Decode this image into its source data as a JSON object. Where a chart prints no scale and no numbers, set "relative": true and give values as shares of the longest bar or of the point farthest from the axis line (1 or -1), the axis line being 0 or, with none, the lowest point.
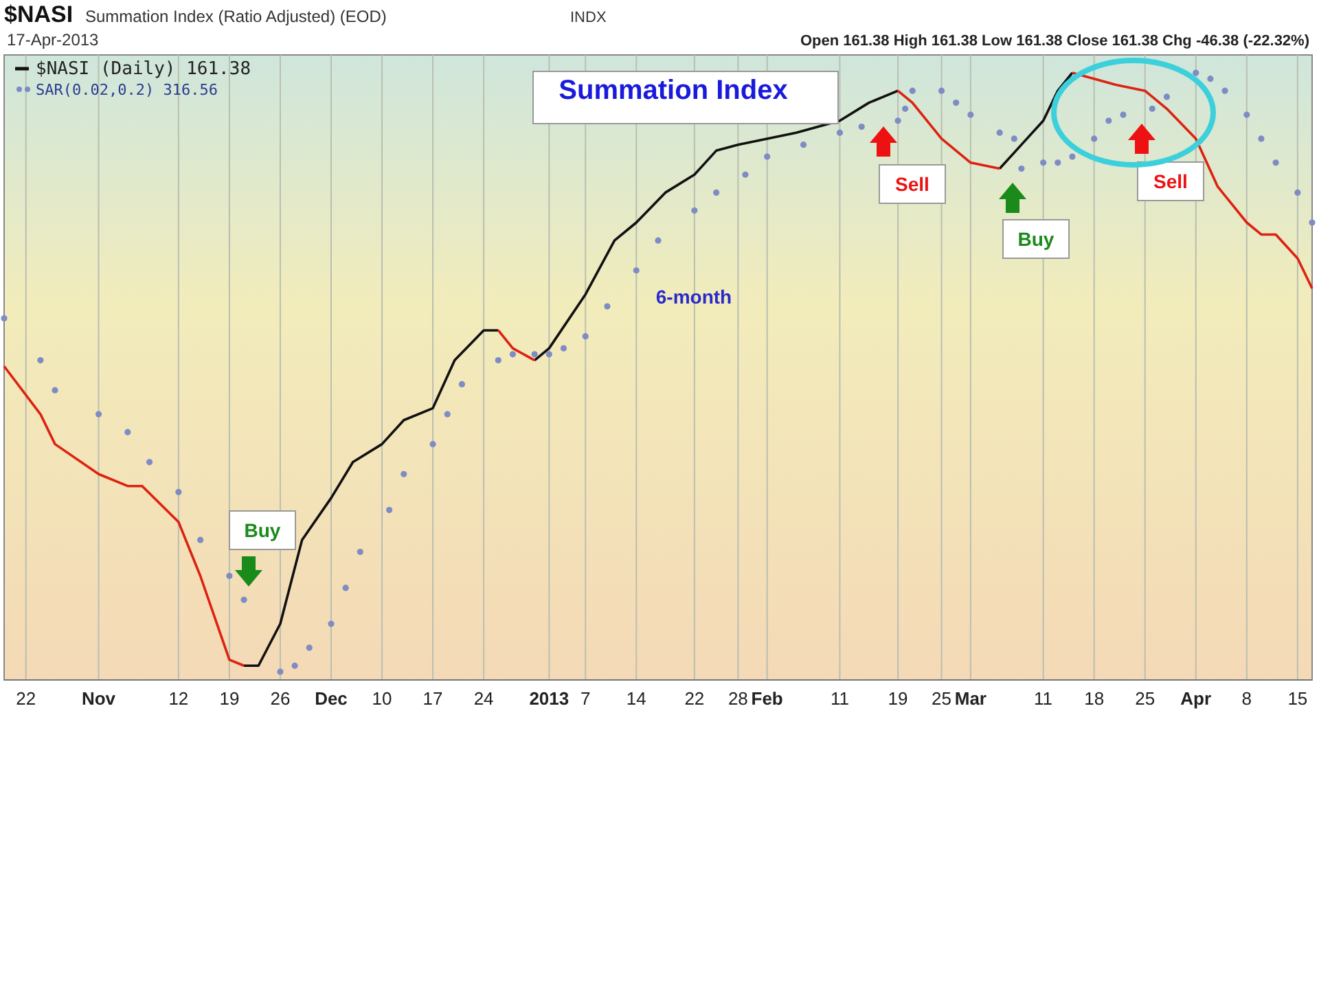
{
  "chart_data": {
    "type": "line",
    "title": "$NASI",
    "subtitle": "Summation Index (Ratio Adjusted) (EOD)",
    "relative": true,
    "grid": "x",
    "legend": "top left",
    "xlim": [
      "2012-10-19",
      "2013-04-17"
    ],
    "xticks": [
      {
        "value": "2012-10-22",
        "label": "22"
      },
      {
        "value": "2012-11-01",
        "label": "Nov"
      },
      {
        "value": "2012-11-12",
        "label": "12"
      },
      {
        "value": "2012-11-19",
        "label": "19"
      },
      {
        "value": "2012-11-26",
        "label": "26"
      },
      {
        "value": "2012-12-03",
        "label": "Dec"
      },
      {
        "value": "2012-12-10",
        "label": "10"
      },
      {
        "value": "2012-12-17",
        "label": "17"
      },
      {
        "value": "2012-12-24",
        "label": "24"
      },
      {
        "value": "2013-01-02",
        "label": "2013"
      },
      {
        "value": "2013-01-07",
        "label": "7"
      },
      {
        "value": "2013-01-14",
        "label": "14"
      },
      {
        "value": "2013-01-22",
        "label": "22"
      },
      {
        "value": "2013-01-28",
        "label": "28"
      },
      {
        "value": "2013-02-01",
        "label": "Feb"
      },
      {
        "value": "2013-02-11",
        "label": "11"
      },
      {
        "value": "2013-02-19",
        "label": "19"
      },
      {
        "value": "2013-02-25",
        "label": "25"
      },
      {
        "value": "2013-03-01",
        "label": "Mar"
      },
      {
        "value": "2013-03-11",
        "label": "11"
      },
      {
        "value": "2013-03-18",
        "label": "18"
      },
      {
        "value": "2013-03-25",
        "label": "25"
      },
      {
        "value": "2013-04-01",
        "label": "Apr"
      },
      {
        "value": "2013-04-08",
        "label": "8"
      },
      {
        "value": "2013-04-15",
        "label": "15"
      }
    ],
    "series": [
      {
        "name": "$NASI (Daily) 161.38",
        "color": "#111111",
        "x": [
          "2012-11-21",
          "2012-11-23",
          "2012-11-26",
          "2012-11-29",
          "2012-12-03",
          "2012-12-06",
          "2012-12-10",
          "2012-12-13",
          "2012-12-17",
          "2012-12-20",
          "2012-12-24",
          "2012-12-26"
        ],
        "values": [
          0.01,
          0.01,
          0.08,
          0.22,
          0.29,
          0.35,
          0.38,
          0.42,
          0.44,
          0.52,
          0.57,
          0.57
        ]
      },
      {
        "color": "#111111",
        "x": [
          "2012-12-31",
          "2013-01-02",
          "2013-01-07",
          "2013-01-11",
          "2013-01-14",
          "2013-01-18",
          "2013-01-22",
          "2013-01-25",
          "2013-01-28",
          "2013-02-01",
          "2013-02-05",
          "2013-02-11",
          "2013-02-15",
          "2013-02-19"
        ],
        "values": [
          0.52,
          0.54,
          0.63,
          0.72,
          0.75,
          0.8,
          0.83,
          0.87,
          0.88,
          0.89,
          0.9,
          0.92,
          0.95,
          0.97
        ]
      },
      {
        "color": "#111111",
        "x": [
          "2013-03-05",
          "2013-03-08",
          "2013-03-11",
          "2013-03-13",
          "2013-03-15"
        ],
        "values": [
          0.84,
          0.88,
          0.92,
          0.97,
          1.0
        ]
      },
      {
        "color": "#dd2211",
        "x": [
          "2012-10-19",
          "2012-10-24",
          "2012-10-26",
          "2012-11-01",
          "2012-11-05",
          "2012-11-07",
          "2012-11-12",
          "2012-11-15",
          "2012-11-19",
          "2012-11-21"
        ],
        "values": [
          0.51,
          0.43,
          0.38,
          0.33,
          0.31,
          0.31,
          0.25,
          0.16,
          0.02,
          0.01
        ]
      },
      {
        "color": "#dd2211",
        "x": [
          "2012-12-26",
          "2012-12-28",
          "2012-12-31"
        ],
        "values": [
          0.57,
          0.54,
          0.52
        ]
      },
      {
        "color": "#dd2211",
        "x": [
          "2013-02-19",
          "2013-02-21",
          "2013-02-25",
          "2013-02-28",
          "2013-03-01",
          "2013-03-05"
        ],
        "values": [
          0.97,
          0.95,
          0.89,
          0.86,
          0.85,
          0.84
        ]
      },
      {
        "color": "#dd2211",
        "x": [
          "2013-03-15",
          "2013-03-18",
          "2013-03-21",
          "2013-03-25",
          "2013-03-28",
          "2013-04-01",
          "2013-04-04",
          "2013-04-08",
          "2013-04-10",
          "2013-04-12",
          "2013-04-15",
          "2013-04-17"
        ],
        "values": [
          1.0,
          0.99,
          0.98,
          0.97,
          0.94,
          0.89,
          0.81,
          0.75,
          0.73,
          0.73,
          0.69,
          0.64
        ]
      },
      {
        "name": "SAR(0.02,0.2) 316.56",
        "type": "scatter",
        "marker": "circle",
        "color": "#7f8cc4",
        "x": [
          "2012-10-19",
          "2012-10-24",
          "2012-10-26",
          "2012-11-01",
          "2012-11-05",
          "2012-11-08",
          "2012-11-12",
          "2012-11-15",
          "2012-11-19",
          "2012-11-21",
          "2012-11-26",
          "2012-11-28",
          "2012-11-30",
          "2012-12-03",
          "2012-12-05",
          "2012-12-07",
          "2012-12-11",
          "2012-12-13",
          "2012-12-17",
          "2012-12-19",
          "2012-12-21",
          "2012-12-26",
          "2012-12-28",
          "2012-12-31",
          "2013-01-02",
          "2013-01-04",
          "2013-01-07",
          "2013-01-10",
          "2013-01-14",
          "2013-01-17",
          "2013-01-22",
          "2013-01-25",
          "2013-01-29",
          "2013-02-01",
          "2013-02-06",
          "2013-02-11",
          "2013-02-14",
          "2013-02-19",
          "2013-02-20",
          "2013-02-21",
          "2013-02-25",
          "2013-02-27",
          "2013-03-01",
          "2013-03-05",
          "2013-03-07",
          "2013-03-08",
          "2013-03-11",
          "2013-03-13",
          "2013-03-15",
          "2013-03-18",
          "2013-03-20",
          "2013-03-22",
          "2013-03-26",
          "2013-03-28",
          "2013-04-01",
          "2013-04-03",
          "2013-04-05",
          "2013-04-08",
          "2013-04-10",
          "2013-04-12",
          "2013-04-15",
          "2013-04-17"
        ],
        "values": [
          0.59,
          0.52,
          0.47,
          0.43,
          0.4,
          0.35,
          0.3,
          0.22,
          0.16,
          0.12,
          0.0,
          0.01,
          0.04,
          0.08,
          0.14,
          0.2,
          0.27,
          0.33,
          0.38,
          0.43,
          0.48,
          0.52,
          0.53,
          0.53,
          0.53,
          0.54,
          0.56,
          0.61,
          0.67,
          0.72,
          0.77,
          0.8,
          0.83,
          0.86,
          0.88,
          0.9,
          0.91,
          0.92,
          0.94,
          0.97,
          0.97,
          0.95,
          0.93,
          0.9,
          0.89,
          0.84,
          0.85,
          0.85,
          0.86,
          0.89,
          0.92,
          0.93,
          0.94,
          0.96,
          1.0,
          0.99,
          0.97,
          0.93,
          0.89,
          0.85,
          0.8,
          0.75
        ]
      }
    ],
    "annotations": [
      "17-Apr-2013",
      "INDX",
      "Open 161.38  High 161.38  Low 161.38  Close 161.38  Chg -46.38 (-22.32%)",
      "Summation Index",
      "6-month",
      "Buy",
      "Sell",
      "Buy",
      "Sell"
    ]
  }
}
